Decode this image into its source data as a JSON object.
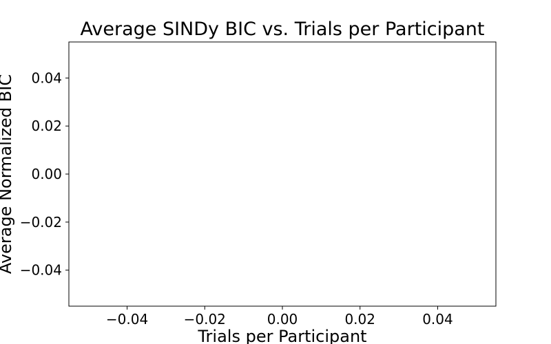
{
  "chart_data": {
    "type": "line",
    "title": "Average SINDy BIC vs. Trials per Participant",
    "xlabel": "Trials per Participant",
    "ylabel": "Average Normalized BIC",
    "xlim": [
      -0.055,
      0.055
    ],
    "ylim": [
      -0.055,
      0.055
    ],
    "x_ticks": [
      -0.04,
      -0.02,
      0.0,
      0.02,
      0.04
    ],
    "y_ticks": [
      0.04,
      0.02,
      0.0,
      -0.02,
      -0.04
    ],
    "x_tick_labels": [
      "−0.04",
      "−0.02",
      "0.00",
      "0.02",
      "0.04"
    ],
    "y_tick_labels": [
      "0.04",
      "0.02",
      "0.00",
      "−0.02",
      "−0.04"
    ],
    "series": [],
    "grid": false,
    "legend": false
  }
}
